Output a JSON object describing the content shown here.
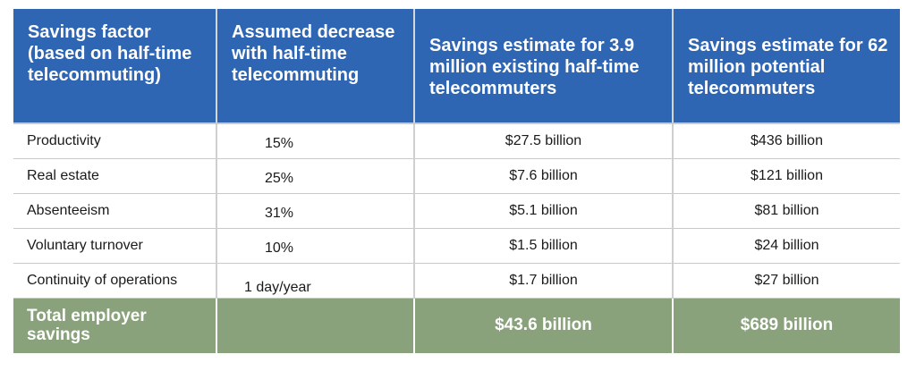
{
  "headers": [
    "Savings factor (based on half-time telecommuting)",
    "Assumed decrease with half-time telecommuting",
    "Savings estimate for 3.9 million existing half-time telecommuters",
    "Savings estimate for 62 million potential telecommuters"
  ],
  "rows": [
    {
      "factor": "Productivity",
      "decrease": "15%",
      "existing": "$27.5 billion",
      "potential": "$436 billion"
    },
    {
      "factor": "Real estate",
      "decrease": "25%",
      "existing": "$7.6 billion",
      "potential": "$121 billion"
    },
    {
      "factor": "Absenteeism",
      "decrease": "31%",
      "existing": "$5.1 billion",
      "potential": "$81 billion"
    },
    {
      "factor": "Voluntary turnover",
      "decrease": "10%",
      "existing": "$1.5 billion",
      "potential": "$24 billion"
    },
    {
      "factor": "Continuity of operations",
      "decrease": "1 day/year",
      "existing": "$1.7 billion",
      "potential": "$27 billion"
    }
  ],
  "total": {
    "label": "Total employer savings",
    "decrease": "",
    "existing": "$43.6 billion",
    "potential": "$689 billion"
  },
  "colors": {
    "header_bg": "#2f66b3",
    "total_bg": "#8aa27b"
  }
}
